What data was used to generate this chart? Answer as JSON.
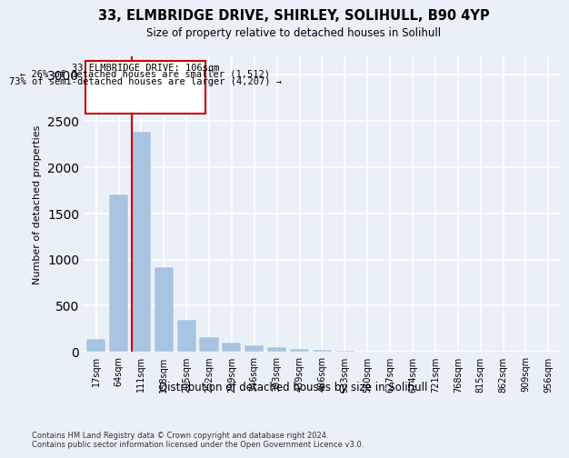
{
  "title_line1": "33, ELMBRIDGE DRIVE, SHIRLEY, SOLIHULL, B90 4YP",
  "title_line2": "Size of property relative to detached houses in Solihull",
  "xlabel": "Distribution of detached houses by size in Solihull",
  "ylabel": "Number of detached properties",
  "categories": [
    "17sqm",
    "64sqm",
    "111sqm",
    "158sqm",
    "205sqm",
    "252sqm",
    "299sqm",
    "346sqm",
    "393sqm",
    "439sqm",
    "486sqm",
    "533sqm",
    "580sqm",
    "627sqm",
    "674sqm",
    "721sqm",
    "768sqm",
    "815sqm",
    "862sqm",
    "909sqm",
    "956sqm"
  ],
  "values": [
    140,
    1700,
    2380,
    920,
    350,
    160,
    95,
    70,
    55,
    30,
    20,
    10,
    5,
    3,
    2,
    1,
    1,
    0,
    0,
    0,
    0
  ],
  "bar_color": "#a8c4e0",
  "vline_x": 1.57,
  "vline_color": "#cc0000",
  "box_text_line1": "33 ELMBRIDGE DRIVE: 106sqm",
  "box_text_line2": "← 26% of detached houses are smaller (1,512)",
  "box_text_line3": "73% of semi-detached houses are larger (4,207) →",
  "box_color": "#cc0000",
  "ylim": [
    0,
    3200
  ],
  "yticks": [
    0,
    500,
    1000,
    1500,
    2000,
    2500,
    3000
  ],
  "footnote": "Contains HM Land Registry data © Crown copyright and database right 2024.\nContains public sector information licensed under the Open Government Licence v3.0.",
  "background_color": "#eaf0f8",
  "plot_bg_color": "#eaf0f8",
  "grid_color": "#ffffff"
}
